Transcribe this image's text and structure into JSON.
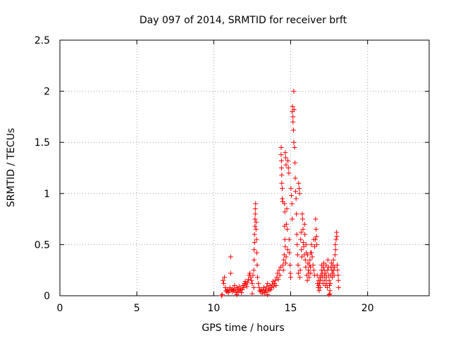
{
  "chart_data": {
    "type": "scatter",
    "title": "Day 097 of 2014, SRMTID for receiver brft",
    "xlabel": "GPS time / hours",
    "ylabel": "SRMTID / TECUs",
    "xlim": [
      0,
      24
    ],
    "ylim": [
      0,
      2.5
    ],
    "xticks": [
      0,
      5,
      10,
      15,
      20
    ],
    "xtick_labels": [
      "0",
      "5",
      "10",
      "15",
      "20"
    ],
    "yticks": [
      0,
      0.5,
      1,
      1.5,
      2,
      2.5
    ],
    "ytick_labels": [
      "0",
      "0.5",
      "1",
      "1.5",
      "2",
      "2.5"
    ],
    "grid": true,
    "marker": "+",
    "color": "#ff0000",
    "series": [
      {
        "name": "SRMTID",
        "points": [
          [
            10.5,
            0.0
          ],
          [
            10.55,
            0.01
          ],
          [
            10.6,
            0.15
          ],
          [
            10.65,
            0.12
          ],
          [
            10.7,
            0.18
          ],
          [
            10.75,
            0.08
          ],
          [
            10.8,
            0.05
          ],
          [
            10.85,
            0.04
          ],
          [
            10.9,
            0.06
          ],
          [
            10.95,
            0.03
          ],
          [
            11.0,
            0.05
          ],
          [
            11.05,
            0.08
          ],
          [
            11.1,
            0.38
          ],
          [
            11.1,
            0.22
          ],
          [
            11.15,
            0.06
          ],
          [
            11.2,
            0.04
          ],
          [
            11.25,
            0.07
          ],
          [
            11.3,
            0.05
          ],
          [
            11.35,
            0.1
          ],
          [
            11.4,
            0.06
          ],
          [
            11.45,
            0.03
          ],
          [
            11.5,
            0.08
          ],
          [
            11.55,
            0.06
          ],
          [
            11.6,
            0.04
          ],
          [
            11.65,
            0.09
          ],
          [
            11.7,
            0.05
          ],
          [
            11.75,
            0.07
          ],
          [
            11.8,
            0.03
          ],
          [
            11.85,
            0.06
          ],
          [
            11.9,
            0.1
          ],
          [
            11.95,
            0.08
          ],
          [
            12.0,
            0.12
          ],
          [
            12.05,
            0.14
          ],
          [
            12.1,
            0.11
          ],
          [
            12.15,
            0.09
          ],
          [
            12.2,
            0.13
          ],
          [
            12.25,
            0.16
          ],
          [
            12.3,
            0.2
          ],
          [
            12.35,
            0.22
          ],
          [
            12.4,
            0.18
          ],
          [
            12.45,
            0.15
          ],
          [
            12.5,
            0.12
          ],
          [
            12.55,
            0.2
          ],
          [
            12.6,
            0.08
          ],
          [
            12.6,
            0.25
          ],
          [
            12.62,
            0.35
          ],
          [
            12.62,
            0.45
          ],
          [
            12.65,
            0.52
          ],
          [
            12.65,
            0.6
          ],
          [
            12.68,
            0.68
          ],
          [
            12.68,
            0.75
          ],
          [
            12.7,
            0.8
          ],
          [
            12.7,
            0.85
          ],
          [
            12.72,
            0.9
          ],
          [
            12.75,
            0.72
          ],
          [
            12.75,
            0.65
          ],
          [
            12.78,
            0.55
          ],
          [
            12.8,
            0.42
          ],
          [
            12.82,
            0.3
          ],
          [
            12.85,
            0.18
          ],
          [
            12.9,
            0.12
          ],
          [
            12.95,
            0.08
          ],
          [
            13.0,
            0.05
          ],
          [
            13.05,
            0.04
          ],
          [
            13.1,
            0.06
          ],
          [
            13.15,
            0.02
          ],
          [
            13.2,
            0.05
          ],
          [
            13.25,
            0.08
          ],
          [
            13.3,
            0.03
          ],
          [
            13.35,
            0.06
          ],
          [
            13.4,
            0.04
          ],
          [
            13.45,
            0.09
          ],
          [
            13.5,
            0.12
          ],
          [
            13.55,
            0.07
          ],
          [
            13.6,
            0.05
          ],
          [
            13.65,
            0.1
          ],
          [
            13.7,
            0.06
          ],
          [
            13.75,
            0.08
          ],
          [
            13.8,
            0.11
          ],
          [
            13.85,
            0.14
          ],
          [
            13.9,
            0.09
          ],
          [
            13.95,
            0.12
          ],
          [
            14.0,
            0.15
          ],
          [
            14.05,
            0.1
          ],
          [
            14.1,
            0.18
          ],
          [
            14.15,
            0.22
          ],
          [
            14.2,
            0.16
          ],
          [
            14.25,
            0.25
          ],
          [
            14.3,
            0.2
          ],
          [
            14.35,
            0.28
          ],
          [
            14.38,
            1.45
          ],
          [
            14.38,
            1.38
          ],
          [
            14.4,
            1.32
          ],
          [
            14.4,
            1.25
          ],
          [
            14.42,
            1.18
          ],
          [
            14.42,
            1.1
          ],
          [
            14.45,
            1.05
          ],
          [
            14.45,
            0.95
          ],
          [
            14.48,
            0.92
          ],
          [
            14.5,
            0.3
          ],
          [
            14.52,
            0.25
          ],
          [
            14.55,
            0.35
          ],
          [
            14.58,
            0.4
          ],
          [
            14.6,
            0.68
          ],
          [
            14.62,
            0.55
          ],
          [
            14.65,
            0.48
          ],
          [
            14.68,
            0.32
          ],
          [
            14.7,
            0.38
          ],
          [
            14.72,
            0.7
          ],
          [
            14.75,
            0.85
          ],
          [
            14.78,
            0.65
          ],
          [
            14.8,
            0.45
          ],
          [
            14.82,
            1.32
          ],
          [
            14.85,
            1.25
          ],
          [
            14.88,
            1.2
          ],
          [
            14.9,
            0.55
          ],
          [
            14.92,
            0.42
          ],
          [
            14.95,
            0.3
          ],
          [
            14.98,
            0.22
          ],
          [
            15.0,
            0.18
          ],
          [
            15.02,
            1.05
          ],
          [
            15.05,
            0.98
          ],
          [
            15.08,
            0.9
          ],
          [
            15.1,
            0.75
          ],
          [
            15.1,
            1.8
          ],
          [
            15.12,
            1.85
          ],
          [
            15.15,
            1.75
          ],
          [
            15.15,
            1.7
          ],
          [
            15.18,
            1.62
          ],
          [
            15.2,
            1.5
          ],
          [
            15.2,
            2.0
          ],
          [
            15.22,
            1.82
          ],
          [
            15.25,
            1.45
          ],
          [
            15.28,
            1.3
          ],
          [
            15.3,
            1.15
          ],
          [
            15.32,
            1.02
          ],
          [
            15.35,
            0.95
          ],
          [
            15.38,
            0.8
          ],
          [
            15.4,
            0.6
          ],
          [
            15.42,
            0.5
          ],
          [
            15.45,
            0.4
          ],
          [
            15.48,
            0.3
          ],
          [
            15.5,
            0.22
          ],
          [
            15.52,
            1.1
          ],
          [
            15.55,
            1.05
          ],
          [
            15.58,
            1.0
          ],
          [
            15.6,
            0.18
          ],
          [
            15.62,
            0.25
          ],
          [
            15.65,
            0.55
          ],
          [
            15.68,
            0.62
          ],
          [
            15.7,
            0.45
          ],
          [
            15.72,
            0.38
          ],
          [
            15.75,
            0.8
          ],
          [
            15.78,
            0.75
          ],
          [
            15.8,
            0.65
          ],
          [
            15.82,
            0.52
          ],
          [
            15.85,
            0.48
          ],
          [
            15.88,
            0.4
          ],
          [
            15.9,
            0.7
          ],
          [
            15.92,
            0.6
          ],
          [
            15.95,
            0.35
          ],
          [
            15.98,
            0.28
          ],
          [
            16.0,
            0.5
          ],
          [
            16.02,
            0.42
          ],
          [
            16.05,
            0.2
          ],
          [
            16.08,
            0.15
          ],
          [
            16.1,
            0.4
          ],
          [
            16.12,
            0.32
          ],
          [
            16.15,
            0.25
          ],
          [
            16.18,
            0.22
          ],
          [
            16.2,
            0.18
          ],
          [
            16.22,
            0.3
          ],
          [
            16.25,
            0.35
          ],
          [
            16.28,
            0.28
          ],
          [
            16.3,
            0.22
          ],
          [
            16.35,
            0.42
          ],
          [
            16.4,
            0.38
          ],
          [
            16.45,
            0.3
          ],
          [
            16.5,
            0.25
          ],
          [
            16.55,
            0.2
          ],
          [
            16.6,
            0.55
          ],
          [
            16.62,
            0.75
          ],
          [
            16.65,
            0.65
          ],
          [
            16.68,
            0.58
          ],
          [
            16.7,
            0.5
          ],
          [
            16.72,
            0.2
          ],
          [
            16.75,
            0.12
          ],
          [
            16.78,
            0.08
          ],
          [
            16.8,
            0.15
          ],
          [
            16.82,
            0.1
          ],
          [
            16.85,
            0.05
          ],
          [
            16.88,
            0.12
          ],
          [
            16.9,
            0.18
          ],
          [
            16.92,
            0.08
          ],
          [
            16.95,
            0.15
          ],
          [
            16.98,
            0.2
          ],
          [
            17.0,
            0.25
          ],
          [
            17.02,
            0.3
          ],
          [
            17.05,
            0.22
          ],
          [
            17.08,
            0.18
          ],
          [
            17.1,
            0.12
          ],
          [
            17.12,
            0.28
          ],
          [
            17.15,
            0.32
          ],
          [
            17.18,
            0.25
          ],
          [
            17.2,
            0.2
          ],
          [
            17.22,
            0.15
          ],
          [
            17.25,
            0.1
          ],
          [
            17.28,
            0.22
          ],
          [
            17.3,
            0.3
          ],
          [
            17.32,
            0.18
          ],
          [
            17.35,
            0.12
          ],
          [
            17.38,
            0.08
          ],
          [
            17.4,
            0.25
          ],
          [
            17.42,
            0.35
          ],
          [
            17.45,
            0.28
          ],
          [
            17.48,
            0.2
          ],
          [
            17.5,
            0.15
          ],
          [
            17.52,
            0.1
          ],
          [
            17.55,
            0.05
          ],
          [
            17.58,
            0.12
          ],
          [
            17.6,
            0.2
          ],
          [
            17.62,
            0.28
          ],
          [
            17.65,
            0.32
          ],
          [
            17.68,
            0.25
          ],
          [
            17.7,
            0.18
          ],
          [
            17.72,
            0.22
          ],
          [
            17.75,
            0.3
          ],
          [
            17.78,
            0.35
          ],
          [
            17.8,
            0.25
          ],
          [
            17.82,
            0.2
          ],
          [
            17.85,
            0.28
          ],
          [
            17.88,
            0.4
          ],
          [
            17.9,
            0.5
          ],
          [
            17.92,
            0.45
          ],
          [
            17.95,
            0.55
          ],
          [
            17.98,
            0.62
          ],
          [
            18.0,
            0.58
          ],
          [
            18.02,
            0.3
          ],
          [
            18.05,
            0.25
          ],
          [
            18.08,
            0.2
          ],
          [
            18.1,
            0.15
          ],
          [
            18.12,
            0.08
          ],
          [
            17.5,
            0.01
          ],
          [
            17.55,
            0.02
          ],
          [
            16.5,
            0.55
          ],
          [
            16.55,
            0.48
          ],
          [
            16.3,
            0.42
          ],
          [
            16.35,
            0.5
          ],
          [
            14.6,
            0.9
          ],
          [
            14.62,
            0.82
          ],
          [
            14.65,
            1.4
          ],
          [
            14.68,
            1.35
          ],
          [
            14.7,
            1.28
          ],
          [
            12.5,
            0.02
          ],
          [
            13.5,
            0.01
          ],
          [
            11.5,
            0.01
          ]
        ]
      }
    ]
  }
}
